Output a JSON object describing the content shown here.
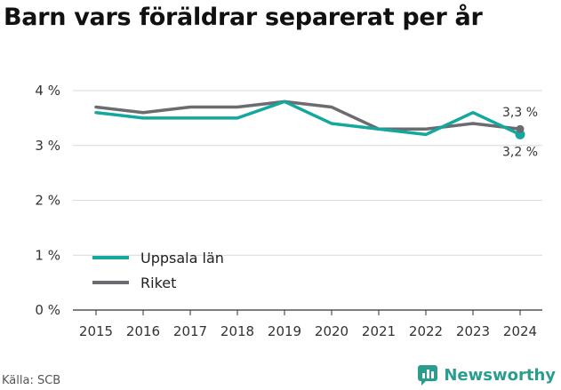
{
  "title": "Barn vars föräldrar separerat per år",
  "source": "Källa: SCB",
  "brand": {
    "name": "Newsworthy",
    "icon": "newsworthy-logo-icon",
    "color": "#2a9d8f"
  },
  "chart_data": {
    "type": "line",
    "x": [
      "2015",
      "2016",
      "2017",
      "2018",
      "2019",
      "2020",
      "2021",
      "2022",
      "2023",
      "2024"
    ],
    "ylim": [
      0,
      4
    ],
    "yticks": [
      "0 %",
      "1 %",
      "2 %",
      "3 %",
      "4 %"
    ],
    "yticks_values": [
      0,
      1,
      2,
      3,
      4
    ],
    "grid": "horizontal",
    "legend_position": "bottom-left",
    "series": [
      {
        "name": "Uppsala län",
        "color": "#13a89e",
        "values": [
          3.6,
          3.5,
          3.5,
          3.5,
          3.8,
          3.4,
          3.3,
          3.2,
          3.6,
          3.2
        ],
        "end_label": "3,2 %"
      },
      {
        "name": "Riket",
        "color": "#6b6b70",
        "values": [
          3.7,
          3.6,
          3.7,
          3.7,
          3.8,
          3.7,
          3.3,
          3.3,
          3.4,
          3.3
        ],
        "end_label": "3,3 %"
      }
    ]
  }
}
